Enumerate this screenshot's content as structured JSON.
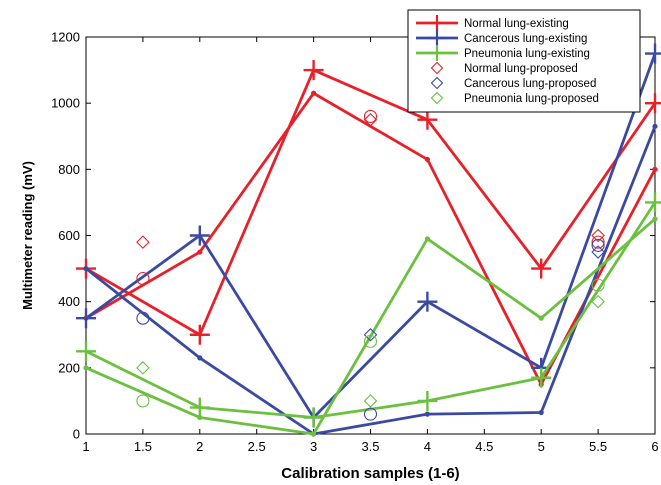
{
  "chart_data": {
    "type": "line",
    "title": "",
    "xlabel": "Calibration samples (1-6)",
    "ylabel": "Multimeter reading (mV)",
    "xlim": [
      1,
      6
    ],
    "ylim": [
      0,
      1200
    ],
    "xticks": [
      1,
      1.5,
      2,
      2.5,
      3,
      3.5,
      4,
      4.5,
      5,
      5.5,
      6
    ],
    "yticks": [
      0,
      200,
      400,
      600,
      800,
      1000,
      1200
    ],
    "grid": false,
    "legend_position": "top-right",
    "series": [
      {
        "name": "Normal lung-existing",
        "kind": "line-plus",
        "color": "#e8202a",
        "x": [
          1,
          2,
          3,
          4,
          5,
          6
        ],
        "y": [
          500,
          300,
          1100,
          950,
          500,
          1000
        ]
      },
      {
        "name": "",
        "kind": "line-dot",
        "color": "#e8202a",
        "x": [
          1,
          2,
          3,
          4,
          5,
          6
        ],
        "y": [
          350,
          550,
          1030,
          830,
          150,
          800
        ]
      },
      {
        "name": "Cancerous lung-existing",
        "kind": "line-plus",
        "color": "#3a4aa0",
        "x": [
          1,
          2,
          3,
          4,
          5,
          6
        ],
        "y": [
          350,
          600,
          50,
          400,
          200,
          1150
        ]
      },
      {
        "name": "",
        "kind": "line-dot",
        "color": "#3a4aa0",
        "x": [
          1,
          2,
          3,
          4,
          5,
          6
        ],
        "y": [
          500,
          230,
          0,
          60,
          65,
          930
        ]
      },
      {
        "name": "Pneumonia lung-existing",
        "kind": "line-plus",
        "color": "#6cc040",
        "x": [
          1,
          2,
          3,
          4,
          5,
          6
        ],
        "y": [
          250,
          80,
          50,
          100,
          170,
          700
        ]
      },
      {
        "name": "",
        "kind": "line-dot",
        "color": "#6cc040",
        "x": [
          1,
          2,
          3,
          4,
          5,
          6
        ],
        "y": [
          200,
          50,
          0,
          590,
          350,
          650
        ]
      },
      {
        "name": "Normal lung-proposed",
        "kind": "diamond",
        "color": "#e8202a",
        "x": [
          1.5,
          3.5,
          5.5
        ],
        "y": [
          580,
          950,
          600
        ]
      },
      {
        "name": "Cancerous lung-proposed",
        "kind": "diamond",
        "color": "#3a4aa0",
        "x": [
          3.5,
          5.5
        ],
        "y": [
          300,
          550
        ]
      },
      {
        "name": "Pneumonia lung-proposed",
        "kind": "diamond",
        "color": "#6cc040",
        "x": [
          1.5,
          3.5,
          5.5
        ],
        "y": [
          200,
          100,
          400
        ]
      },
      {
        "name": "",
        "kind": "circle",
        "color": "#e8202a",
        "x": [
          1.5,
          3.5,
          5.5
        ],
        "y": [
          470,
          960,
          580
        ]
      },
      {
        "name": "",
        "kind": "circle",
        "color": "#3a4aa0",
        "x": [
          1.5,
          3.5,
          5.5
        ],
        "y": [
          350,
          60,
          570
        ]
      },
      {
        "name": "",
        "kind": "circle",
        "color": "#6cc040",
        "x": [
          1.5,
          3.5,
          5.5
        ],
        "y": [
          100,
          280,
          450
        ]
      }
    ]
  }
}
